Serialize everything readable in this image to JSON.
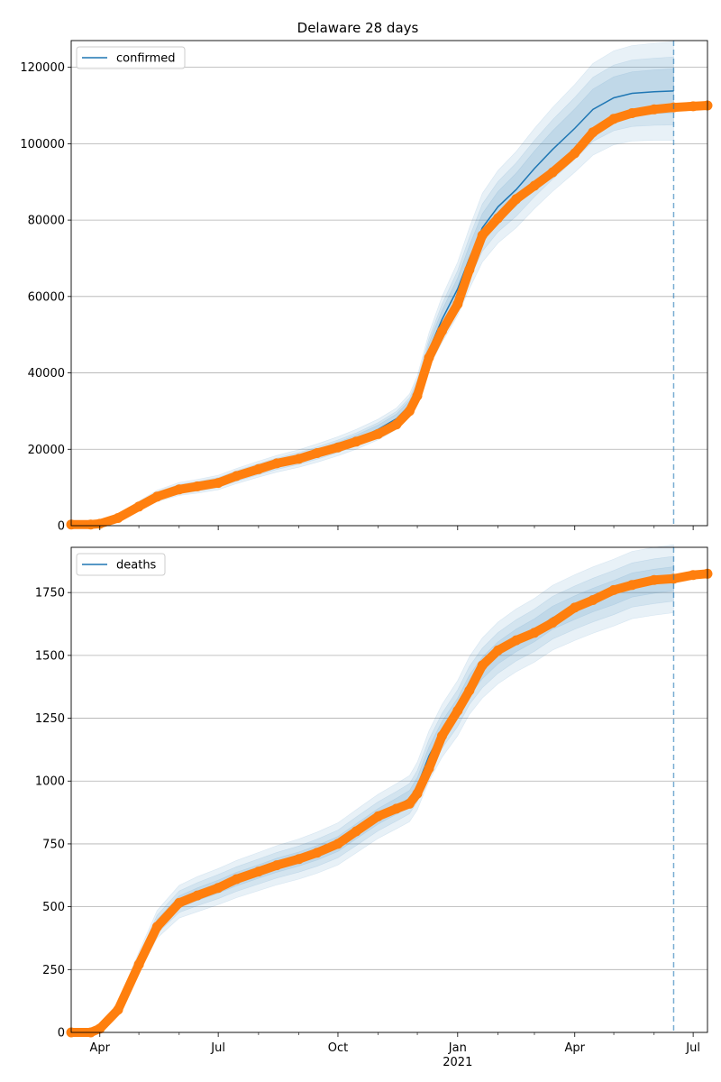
{
  "figure_title": "Delaware 28 days",
  "colors": {
    "model": "#1f77b4",
    "observed": "#ff7f0e",
    "grid": "#b0b0b0",
    "frame": "#000000"
  },
  "x_axis": {
    "start": "2020-03-10",
    "end": "2021-07-12",
    "major_ticks": [
      {
        "date": "2020-04-01",
        "label": "Apr",
        "sub": ""
      },
      {
        "date": "2020-07-01",
        "label": "Jul",
        "sub": ""
      },
      {
        "date": "2020-10-01",
        "label": "Oct",
        "sub": ""
      },
      {
        "date": "2021-01-01",
        "label": "Jan",
        "sub": "2021"
      },
      {
        "date": "2021-04-01",
        "label": "Apr",
        "sub": ""
      },
      {
        "date": "2021-07-01",
        "label": "Jul",
        "sub": ""
      }
    ],
    "minor_ticks": [
      "2020-05-01",
      "2020-06-01",
      "2020-08-01",
      "2020-09-01",
      "2020-11-01",
      "2020-12-01",
      "2021-02-01",
      "2021-03-01",
      "2021-05-01",
      "2021-06-01"
    ],
    "forecast_date": "2021-06-16"
  },
  "chart_data": [
    {
      "type": "line",
      "panel": "confirmed",
      "legend": "confirmed",
      "legend_position": "top-left",
      "grid": "horizontal",
      "ylim": [
        0,
        127000
      ],
      "yticks": [
        0,
        20000,
        40000,
        60000,
        80000,
        100000,
        120000
      ],
      "model_x": [
        "2020-03-10",
        "2020-03-25",
        "2020-04-01",
        "2020-04-15",
        "2020-05-01",
        "2020-05-15",
        "2020-06-01",
        "2020-06-15",
        "2020-07-01",
        "2020-07-15",
        "2020-08-01",
        "2020-08-15",
        "2020-09-01",
        "2020-09-15",
        "2020-10-01",
        "2020-10-15",
        "2020-11-01",
        "2020-11-15",
        "2020-11-25",
        "2020-12-01",
        "2020-12-10",
        "2020-12-20",
        "2021-01-01",
        "2021-01-10",
        "2021-01-20",
        "2021-02-01",
        "2021-02-15",
        "2021-03-01",
        "2021-03-15",
        "2021-04-01",
        "2021-04-15",
        "2021-05-01",
        "2021-05-15",
        "2021-06-01",
        "2021-06-16"
      ],
      "model_y": [
        0,
        100,
        400,
        2000,
        5200,
        7800,
        9600,
        10300,
        11300,
        13000,
        14800,
        16200,
        17600,
        19000,
        20800,
        22600,
        25200,
        28000,
        31500,
        36000,
        46000,
        54000,
        62000,
        70000,
        78000,
        83500,
        88000,
        93500,
        98500,
        104000,
        109000,
        112000,
        113200,
        113600,
        113800
      ],
      "band_width_frac": [
        0,
        0,
        0,
        0,
        0,
        0,
        0,
        0,
        0,
        0,
        0,
        0,
        0,
        0,
        0,
        0,
        0,
        0,
        0,
        0,
        0,
        0,
        0,
        0,
        0,
        0,
        0,
        0,
        0,
        0,
        0,
        0,
        0,
        0,
        0
      ],
      "bands": [
        {
          "opacity": 0.1,
          "spread": [
            0,
            200,
            500,
            900,
            1200,
            1500,
            1700,
            1800,
            1900,
            2000,
            2100,
            2200,
            2300,
            2400,
            2500,
            2600,
            2700,
            2800,
            3000,
            3200,
            4500,
            6000,
            7000,
            8000,
            9000,
            9500,
            10000,
            10500,
            11000,
            11500,
            12000,
            12300,
            12500,
            12700,
            12900
          ]
        },
        {
          "opacity": 0.1,
          "spread": [
            0,
            150,
            350,
            650,
            850,
            1050,
            1200,
            1250,
            1300,
            1400,
            1450,
            1500,
            1550,
            1600,
            1650,
            1700,
            1800,
            1900,
            2000,
            2200,
            3000,
            4000,
            4800,
            5500,
            6200,
            6600,
            7000,
            7400,
            7800,
            8100,
            8400,
            8600,
            8700,
            8800,
            8900
          ]
        },
        {
          "opacity": 0.1,
          "spread": [
            0,
            80,
            200,
            350,
            450,
            550,
            650,
            700,
            750,
            800,
            850,
            900,
            950,
            1000,
            1050,
            1100,
            1150,
            1200,
            1300,
            1400,
            1800,
            2400,
            2900,
            3300,
            3700,
            4000,
            4300,
            4600,
            4900,
            5100,
            5300,
            5500,
            5600,
            5700,
            5800
          ]
        }
      ],
      "observed_x": [
        "2020-03-10",
        "2020-03-25",
        "2020-04-01",
        "2020-04-15",
        "2020-05-01",
        "2020-05-15",
        "2020-06-01",
        "2020-06-15",
        "2020-07-01",
        "2020-07-15",
        "2020-08-01",
        "2020-08-15",
        "2020-09-01",
        "2020-09-15",
        "2020-10-01",
        "2020-10-15",
        "2020-11-01",
        "2020-11-15",
        "2020-11-25",
        "2020-12-01",
        "2020-12-10",
        "2020-12-20",
        "2021-01-01",
        "2021-01-10",
        "2021-01-20",
        "2021-02-01",
        "2021-02-15",
        "2021-03-01",
        "2021-03-15",
        "2021-04-01",
        "2021-04-15",
        "2021-05-01",
        "2021-05-15",
        "2021-06-01",
        "2021-06-16",
        "2021-07-01",
        "2021-07-12"
      ],
      "observed_y": [
        300,
        300,
        500,
        2000,
        5000,
        7600,
        9500,
        10300,
        11200,
        13000,
        14800,
        16300,
        17500,
        19000,
        20500,
        22000,
        24000,
        26500,
        30000,
        34000,
        44000,
        51000,
        58000,
        67000,
        76000,
        80500,
        85500,
        89000,
        92500,
        97500,
        103000,
        106500,
        108000,
        109000,
        109500,
        109800,
        110000
      ]
    },
    {
      "type": "line",
      "panel": "deaths",
      "legend": "deaths",
      "legend_position": "top-left",
      "grid": "horizontal",
      "ylim": [
        0,
        1930
      ],
      "yticks": [
        0,
        250,
        500,
        750,
        1000,
        1250,
        1500,
        1750
      ],
      "model_x": [
        "2020-03-10",
        "2020-03-25",
        "2020-04-01",
        "2020-04-15",
        "2020-05-01",
        "2020-05-15",
        "2020-06-01",
        "2020-06-15",
        "2020-07-01",
        "2020-07-15",
        "2020-08-01",
        "2020-08-15",
        "2020-09-01",
        "2020-09-15",
        "2020-10-01",
        "2020-10-15",
        "2020-11-01",
        "2020-11-15",
        "2020-11-25",
        "2020-12-01",
        "2020-12-10",
        "2020-12-20",
        "2021-01-01",
        "2021-01-10",
        "2021-01-20",
        "2021-02-01",
        "2021-02-15",
        "2021-03-01",
        "2021-03-15",
        "2021-04-01",
        "2021-04-15",
        "2021-05-01",
        "2021-05-15",
        "2021-06-01",
        "2021-06-16"
      ],
      "model_y": [
        0,
        0,
        20,
        100,
        280,
        430,
        520,
        550,
        580,
        610,
        640,
        665,
        690,
        715,
        750,
        800,
        860,
        900,
        930,
        980,
        1100,
        1200,
        1290,
        1380,
        1450,
        1510,
        1560,
        1600,
        1650,
        1690,
        1720,
        1750,
        1780,
        1795,
        1805
      ],
      "bands": [
        {
          "opacity": 0.1,
          "spread": [
            0,
            0,
            8,
            20,
            40,
            55,
            65,
            70,
            72,
            74,
            76,
            78,
            80,
            82,
            84,
            86,
            88,
            90,
            92,
            95,
            100,
            105,
            110,
            115,
            120,
            123,
            125,
            127,
            129,
            131,
            132,
            133,
            134,
            135,
            135
          ]
        },
        {
          "opacity": 0.1,
          "spread": [
            0,
            0,
            5,
            13,
            26,
            36,
            43,
            46,
            48,
            49,
            50,
            51,
            52,
            54,
            55,
            57,
            58,
            59,
            60,
            62,
            66,
            70,
            73,
            76,
            79,
            81,
            82,
            84,
            85,
            86,
            87,
            88,
            88,
            89,
            89
          ]
        },
        {
          "opacity": 0.1,
          "spread": [
            0,
            0,
            3,
            7,
            14,
            19,
            23,
            25,
            26,
            27,
            27,
            28,
            28,
            29,
            30,
            30,
            31,
            32,
            33,
            34,
            36,
            38,
            40,
            42,
            43,
            44,
            45,
            46,
            46,
            47,
            47,
            48,
            48,
            48,
            48
          ]
        }
      ],
      "observed_x": [
        "2020-03-10",
        "2020-03-25",
        "2020-04-01",
        "2020-04-15",
        "2020-05-01",
        "2020-05-15",
        "2020-06-01",
        "2020-06-15",
        "2020-07-01",
        "2020-07-15",
        "2020-08-01",
        "2020-08-15",
        "2020-09-01",
        "2020-09-15",
        "2020-10-01",
        "2020-10-15",
        "2020-11-01",
        "2020-11-15",
        "2020-11-25",
        "2020-12-01",
        "2020-12-10",
        "2020-12-20",
        "2021-01-01",
        "2021-01-10",
        "2021-01-20",
        "2021-02-01",
        "2021-02-15",
        "2021-03-01",
        "2021-03-15",
        "2021-04-01",
        "2021-04-15",
        "2021-05-01",
        "2021-05-15",
        "2021-06-01",
        "2021-06-16",
        "2021-07-01",
        "2021-07-12"
      ],
      "observed_y": [
        0,
        0,
        15,
        90,
        270,
        420,
        515,
        545,
        575,
        610,
        640,
        665,
        690,
        715,
        750,
        800,
        860,
        890,
        910,
        950,
        1050,
        1180,
        1280,
        1360,
        1460,
        1520,
        1560,
        1590,
        1630,
        1690,
        1720,
        1760,
        1780,
        1800,
        1805,
        1820,
        1825
      ]
    }
  ]
}
